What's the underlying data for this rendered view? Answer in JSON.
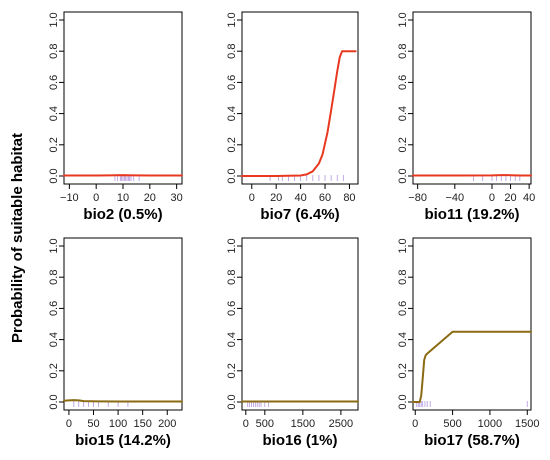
{
  "figure": {
    "ylabel": "Probability of suitable habitat"
  },
  "colors": {
    "red_line": "#e8381f",
    "olive_line": "#8a6a12",
    "rug": "#a07cd8",
    "axis": "#000000"
  },
  "chart_data": [
    {
      "type": "line",
      "title": "bio2 (0.5%)",
      "xlabel": "bio2 (0.5%)",
      "ylabel": "Probability of suitable habitat",
      "xlim": [
        -12,
        32
      ],
      "ylim": [
        0,
        1
      ],
      "xticks": [
        -10,
        0,
        10,
        20,
        30
      ],
      "yticks": [
        0.0,
        0.2,
        0.4,
        0.6,
        0.8,
        1.0
      ],
      "color": "red_line",
      "x": [
        -12,
        0,
        5,
        10,
        15,
        20,
        30,
        32
      ],
      "y": [
        0.003,
        0.003,
        0.004,
        0.006,
        0.004,
        0.003,
        0.003,
        0.003
      ],
      "rug": [
        7,
        8,
        9,
        9.5,
        10,
        10.5,
        11,
        11.5,
        12,
        12.5,
        13,
        14,
        16
      ]
    },
    {
      "type": "line",
      "title": "bio7 (6.4%)",
      "xlabel": "bio7 (6.4%)",
      "ylabel": "Probability of suitable habitat",
      "xlim": [
        -8,
        87
      ],
      "ylim": [
        0,
        1
      ],
      "xticks": [
        0,
        20,
        40,
        60,
        80
      ],
      "yticks": [
        0.0,
        0.2,
        0.4,
        0.6,
        0.8,
        1.0
      ],
      "color": "red_line",
      "x": [
        -8,
        20,
        40,
        45,
        50,
        55,
        58,
        62,
        65,
        68,
        70,
        72,
        74,
        75,
        80,
        85
      ],
      "y": [
        0.0,
        0.0,
        0.003,
        0.01,
        0.03,
        0.08,
        0.14,
        0.28,
        0.42,
        0.57,
        0.67,
        0.76,
        0.8,
        0.8,
        0.8,
        0.8
      ],
      "rug": [
        15,
        22,
        25,
        30,
        35,
        40,
        45,
        50,
        55,
        60,
        65,
        70,
        75
      ]
    },
    {
      "type": "line",
      "title": "bio11 (19.2%)",
      "xlabel": "bio11 (19.2%)",
      "ylabel": "Probability of suitable habitat",
      "xlim": [
        -85,
        42
      ],
      "ylim": [
        0,
        1
      ],
      "xticks": [
        -80,
        -40,
        0,
        20,
        40
      ],
      "yticks": [
        0.0,
        0.2,
        0.4,
        0.6,
        0.8,
        1.0
      ],
      "color": "red_line",
      "x": [
        -85,
        -40,
        0,
        10,
        20,
        30,
        42
      ],
      "y": [
        0.003,
        0.003,
        0.004,
        0.006,
        0.005,
        0.003,
        0.003
      ],
      "rug": [
        -20,
        -10,
        0,
        5,
        10,
        15,
        20,
        25,
        30
      ]
    },
    {
      "type": "line",
      "title": "bio15 (14.2%)",
      "xlabel": "bio15 (14.2%)",
      "ylabel": "Probability of suitable habitat",
      "xlim": [
        -10,
        230
      ],
      "ylim": [
        0,
        1
      ],
      "xticks": [
        0,
        50,
        100,
        150,
        200
      ],
      "yticks": [
        0.0,
        0.2,
        0.4,
        0.6,
        0.8,
        1.0
      ],
      "color": "olive_line",
      "x": [
        -10,
        0,
        10,
        20,
        30,
        60,
        100,
        150,
        230
      ],
      "y": [
        0.008,
        0.01,
        0.012,
        0.01,
        0.006,
        0.004,
        0.003,
        0.003,
        0.003
      ],
      "rug": [
        10,
        20,
        30,
        40,
        50,
        60,
        80,
        100,
        120
      ]
    },
    {
      "type": "line",
      "title": "bio16 (1%)",
      "xlabel": "bio16 (1%)",
      "ylabel": "Probability of suitable habitat",
      "xlim": [
        -100,
        2950
      ],
      "ylim": [
        0,
        1
      ],
      "xticks": [
        0,
        500,
        1500,
        2500
      ],
      "yticks": [
        0.0,
        0.2,
        0.4,
        0.6,
        0.8,
        1.0
      ],
      "color": "olive_line",
      "x": [
        -100,
        500,
        1500,
        2950
      ],
      "y": [
        0.003,
        0.003,
        0.003,
        0.003
      ],
      "rug": [
        50,
        100,
        150,
        200,
        250,
        300,
        350,
        400,
        500,
        600
      ]
    },
    {
      "type": "line",
      "title": "bio17 (58.7%)",
      "xlabel": "bio17 (58.7%)",
      "ylabel": "Probability of suitable habitat",
      "xlim": [
        -30,
        1550
      ],
      "ylim": [
        0,
        1
      ],
      "xticks": [
        0,
        500,
        1000,
        1500
      ],
      "yticks": [
        0.0,
        0.2,
        0.4,
        0.6,
        0.8,
        1.0
      ],
      "color": "olive_line",
      "x": [
        -30,
        60,
        80,
        100,
        120,
        140,
        160,
        500,
        1000,
        1550
      ],
      "y": [
        0.0,
        0.0,
        0.04,
        0.15,
        0.27,
        0.3,
        0.31,
        0.45,
        0.45,
        0.45
      ],
      "rug": [
        20,
        40,
        60,
        80,
        100,
        130,
        160,
        200,
        1500
      ]
    }
  ]
}
